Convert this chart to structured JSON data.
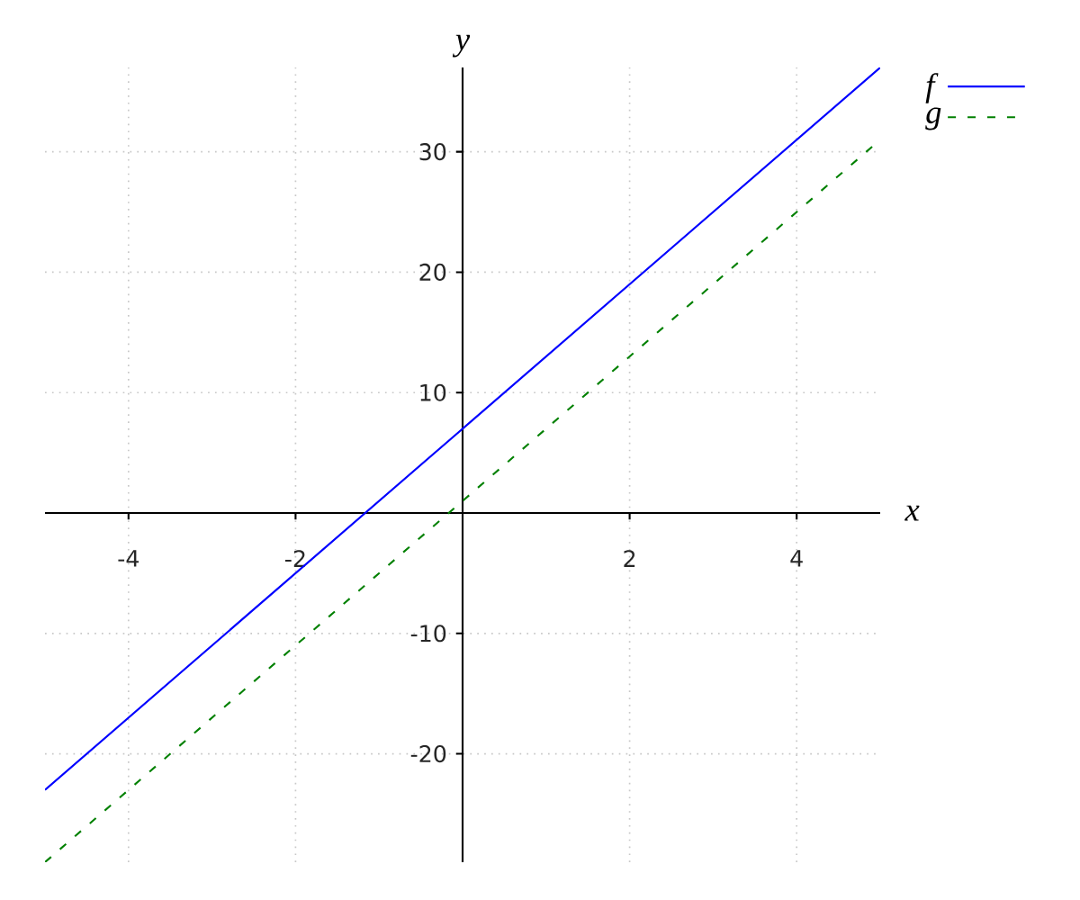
{
  "chart_data": {
    "type": "line",
    "xlabel": "x",
    "ylabel": "y",
    "x": [
      -5,
      0,
      5
    ],
    "series": [
      {
        "name": "f",
        "color": "#0000ff",
        "values": [
          -23,
          7,
          37
        ],
        "line_style": "solid"
      },
      {
        "name": "g",
        "color": "#008000",
        "values": [
          -29,
          1,
          31
        ],
        "line_style": "dashed"
      }
    ],
    "xlim": [
      -5,
      5
    ],
    "ylim": [
      -29,
      37
    ],
    "xticks": [
      -4,
      -2,
      2,
      4
    ],
    "yticks": [
      -20,
      -10,
      10,
      20,
      30
    ],
    "grid": true,
    "legend": "top right"
  }
}
